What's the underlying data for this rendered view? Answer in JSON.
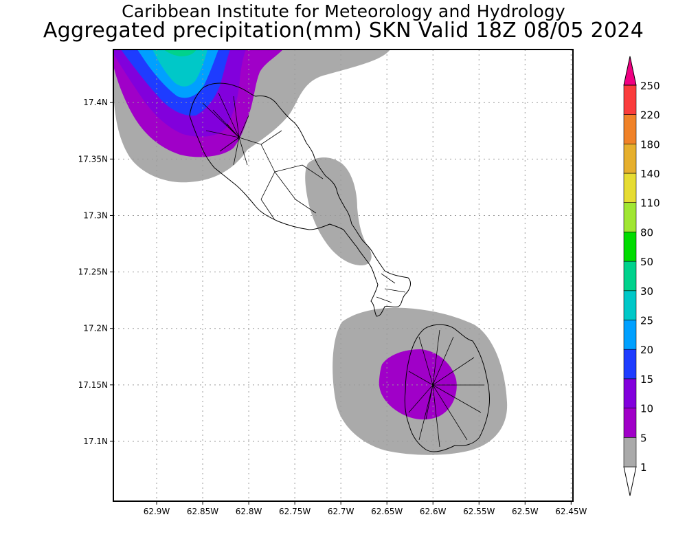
{
  "title": {
    "line1": "Caribbean Institute for Meteorology and Hydrology",
    "line2": "Aggregated precipitation(mm) SKN Valid 18Z 08/05 2024"
  },
  "map": {
    "lon_ticks": [
      "62.9W",
      "62.85W",
      "62.8W",
      "62.75W",
      "62.7W",
      "62.65W",
      "62.6W",
      "62.55W",
      "62.5W",
      "62.45W"
    ],
    "lat_ticks": [
      "17.4N",
      "17.35N",
      "17.3N",
      "17.25N",
      "17.2N",
      "17.15N",
      "17.1N"
    ],
    "lon_values": [
      -62.9,
      -62.85,
      -62.8,
      -62.75,
      -62.7,
      -62.65,
      -62.6,
      -62.55,
      -62.5,
      -62.45
    ],
    "lat_values": [
      17.4,
      17.35,
      17.3,
      17.25,
      17.2,
      17.15,
      17.1
    ],
    "lon_range": [
      -62.947,
      -62.448
    ],
    "lat_range": [
      17.047,
      17.447
    ],
    "grid": true
  },
  "legend": {
    "labels": [
      "1",
      "5",
      "10",
      "15",
      "20",
      "25",
      "30",
      "50",
      "80",
      "110",
      "140",
      "180",
      "220",
      "250"
    ],
    "colors": [
      "#aaaaaa",
      "#a000c8",
      "#8200dc",
      "#1e3cff",
      "#00a0ff",
      "#00c8c8",
      "#00d28c",
      "#00dc00",
      "#a0e632",
      "#e6dc32",
      "#e6af2d",
      "#f08228",
      "#fa3c3c",
      "#f00082"
    ],
    "under_color": "#ffffff"
  }
}
